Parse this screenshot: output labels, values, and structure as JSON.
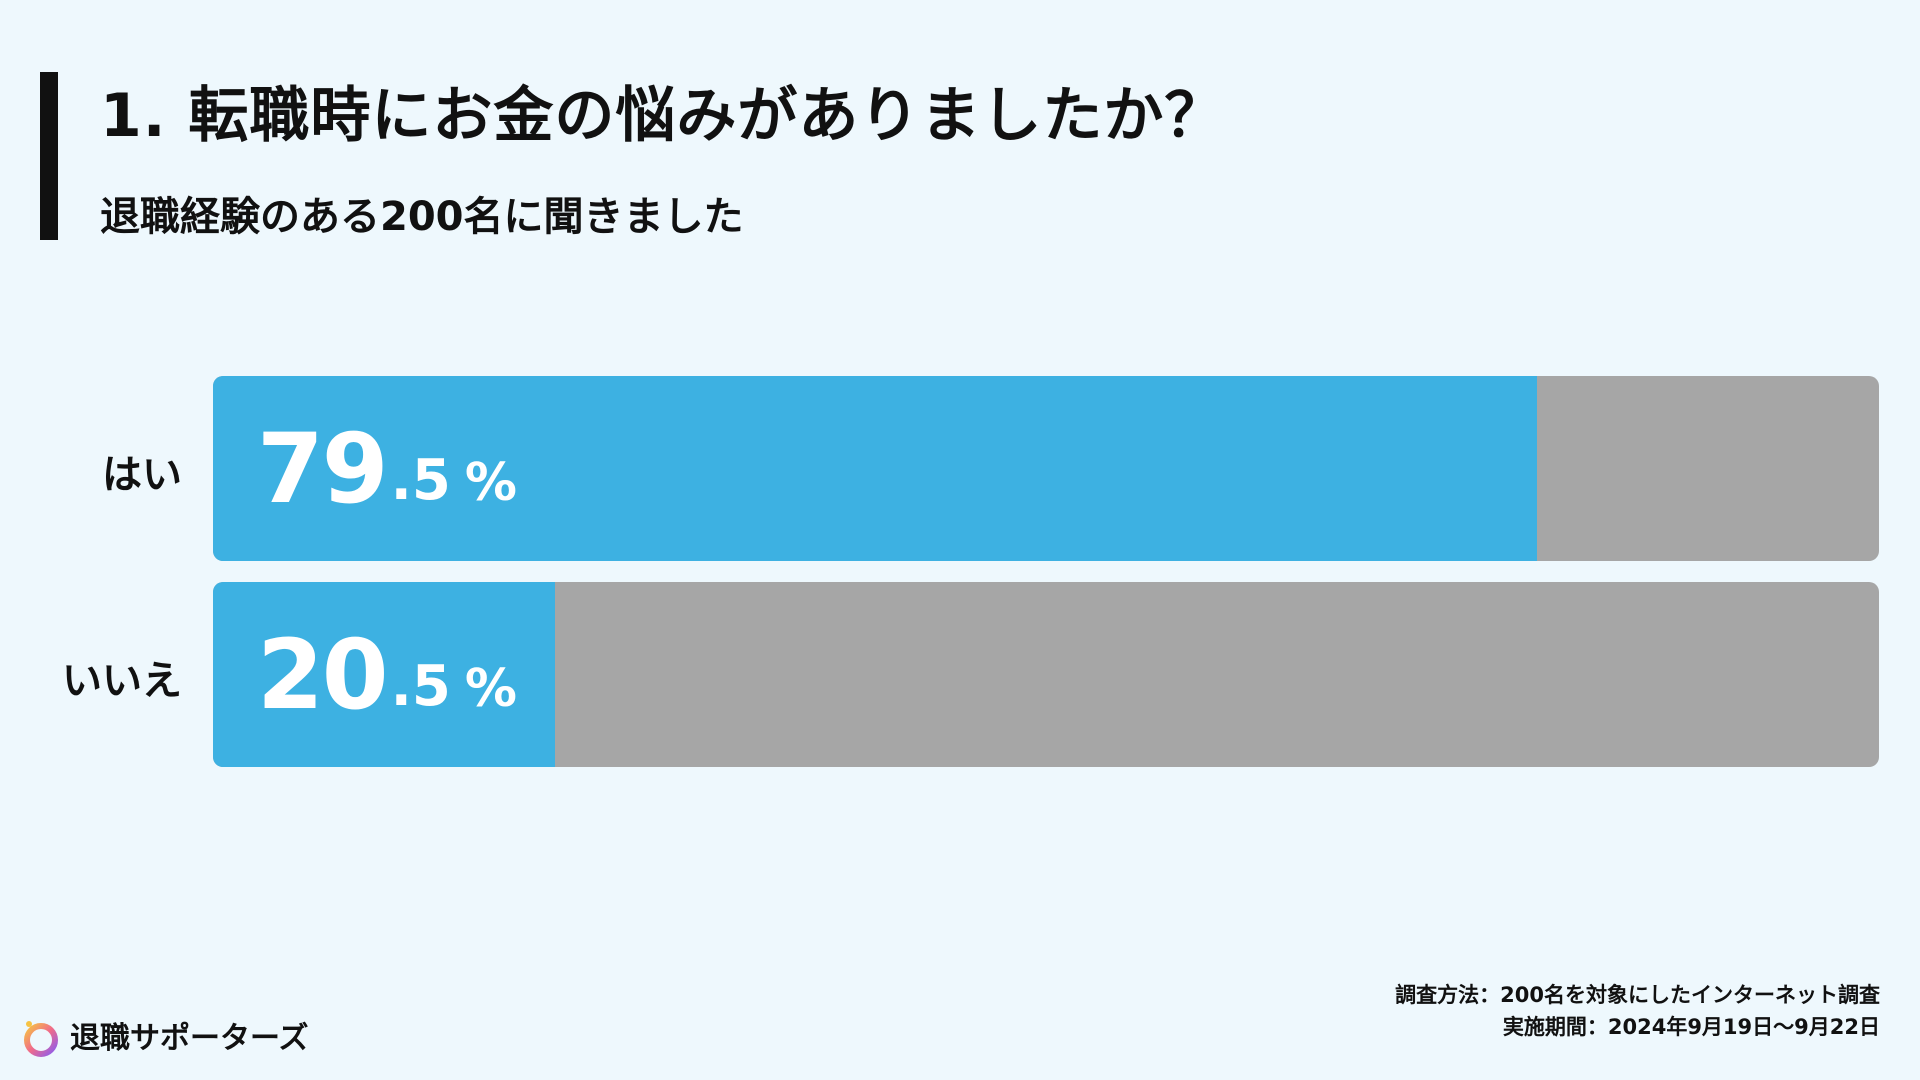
{
  "title": "1. 転職時にお金の悩みがありましたか？",
  "subtitle": "退職経験のある200名に聞きました",
  "colors": {
    "background": "#eef8fd",
    "accent_bar": "#111111",
    "fill": "#3db1e2",
    "track": "#a6a6a6",
    "text": "#111111",
    "value_text": "#ffffff"
  },
  "chart_data": {
    "type": "bar",
    "orientation": "horizontal",
    "title": "1. 転職時にお金の悩みがありましたか？",
    "subtitle": "退職経験のある200名に聞きました",
    "categories": [
      "はい",
      "いいえ"
    ],
    "values": [
      79.5,
      20.5
    ],
    "unit": "%",
    "xlim": [
      0,
      100
    ],
    "grid": false,
    "legend": "none",
    "data_labels": [
      {
        "int": "79",
        "dec": ".5",
        "pct": "%"
      },
      {
        "int": "20",
        "dec": ".5",
        "pct": "%"
      }
    ]
  },
  "footer": {
    "method": "調査方法：200名を対象にしたインターネット調査",
    "period": "実施期間：2024年9月19日〜9月22日"
  },
  "brand": {
    "name": "退職サポーターズ",
    "icon": "ring-logo-icon"
  }
}
